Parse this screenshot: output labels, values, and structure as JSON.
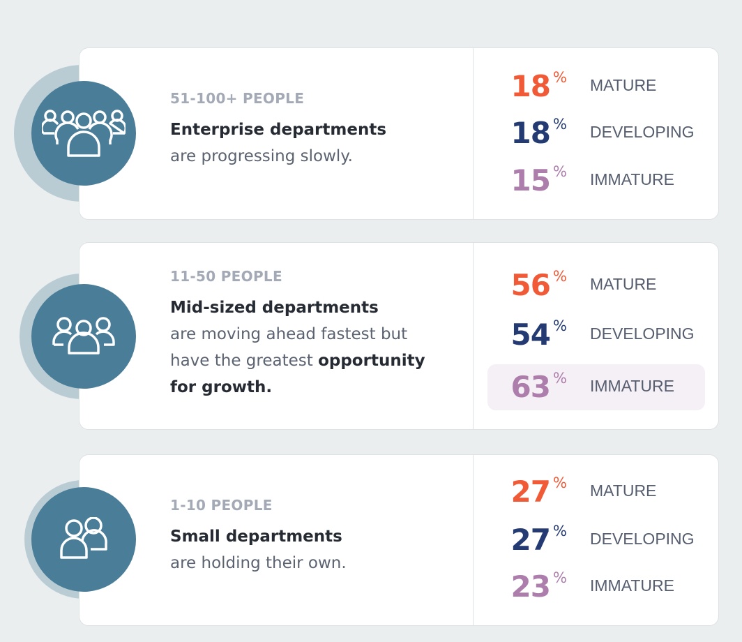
{
  "colors": {
    "mature": "#f05a36",
    "developing": "#243a72",
    "immature": "#ad7dab",
    "icon_bg": "#4a7d98",
    "halo": "#b9ccd4"
  },
  "cards": [
    {
      "size_label": "51-100+ PEOPLE",
      "title": "Enterprise departments",
      "desc": "are progressing slowly.",
      "desc_bold": "",
      "icon": "group-of-five-icon",
      "stats": [
        {
          "value": "18",
          "unit": "%",
          "label": "MATURE"
        },
        {
          "value": "18",
          "unit": "%",
          "label": "DEVELOPING"
        },
        {
          "value": "15",
          "unit": "%",
          "label": "IMMATURE"
        }
      ]
    },
    {
      "size_label": "11-50 PEOPLE",
      "title": "Mid-sized departments",
      "desc": "are moving ahead fastest but have the greatest",
      "desc_bold": "opportunity for growth.",
      "icon": "group-of-three-icon",
      "stats": [
        {
          "value": "56",
          "unit": "%",
          "label": "MATURE"
        },
        {
          "value": "54",
          "unit": "%",
          "label": "DEVELOPING"
        },
        {
          "value": "63",
          "unit": "%",
          "label": "IMMATURE",
          "highlighted": true
        }
      ]
    },
    {
      "size_label": "1-10 PEOPLE",
      "title": "Small departments",
      "desc": "are holding their own.",
      "desc_bold": "",
      "icon": "group-of-two-icon",
      "stats": [
        {
          "value": "27",
          "unit": "%",
          "label": "MATURE"
        },
        {
          "value": "27",
          "unit": "%",
          "label": "DEVELOPING"
        },
        {
          "value": "23",
          "unit": "%",
          "label": "IMMATURE"
        }
      ]
    }
  ]
}
